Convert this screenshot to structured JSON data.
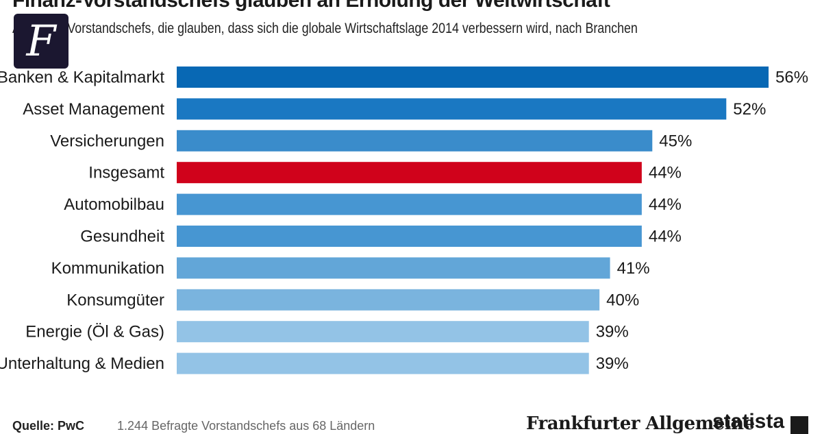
{
  "header": {
    "title": "Finanz-Vorstandschefs glauben an Erholung der Weltwirtschaft",
    "subtitle": "Anteil der Vorstandschefs, die glauben, dass sich die globale Wirtschaftslage 2014 verbessern wird, nach Branchen",
    "logo_letter": "F"
  },
  "chart_data": {
    "type": "bar",
    "orientation": "horizontal",
    "title": "Finanz-Vorstandschefs glauben an Erholung der Weltwirtschaft",
    "subtitle": "Anteil der Vorstandschefs, die glauben, dass sich die globale Wirtschaftslage 2014 verbessern wird, nach Branchen",
    "categories": [
      "Banken & Kapitalmarkt",
      "Asset Management",
      "Versicherungen",
      "Insgesamt",
      "Automobilbau",
      "Gesundheit",
      "Kommunikation",
      "Konsumgüter",
      "Energie (Öl & Gas)",
      "Unterhaltung & Medien"
    ],
    "values": [
      56,
      52,
      45,
      44,
      44,
      44,
      41,
      40,
      39,
      39
    ],
    "value_labels": [
      "56%",
      "52%",
      "45%",
      "44%",
      "44%",
      "44%",
      "41%",
      "40%",
      "39%",
      "39%"
    ],
    "unit": "%",
    "xlim": [
      0,
      56
    ],
    "grid": false,
    "highlight_category": "Insgesamt",
    "colors": {
      "bars": [
        "#0868b4",
        "#1a78c2",
        "#3a8ccb",
        "#d0021b",
        "#4796d2",
        "#4796d2",
        "#62a6d8",
        "#7ab4de",
        "#93c3e6",
        "#93c3e6"
      ],
      "highlight": "#d0021b"
    }
  },
  "footer": {
    "source_label": "Quelle: PwC",
    "note": "1.244 Befragte Vorstandschefs aus 68 Ländern",
    "brand_faz": "Frankfurter Allgemeine",
    "brand_statista": "statista"
  }
}
